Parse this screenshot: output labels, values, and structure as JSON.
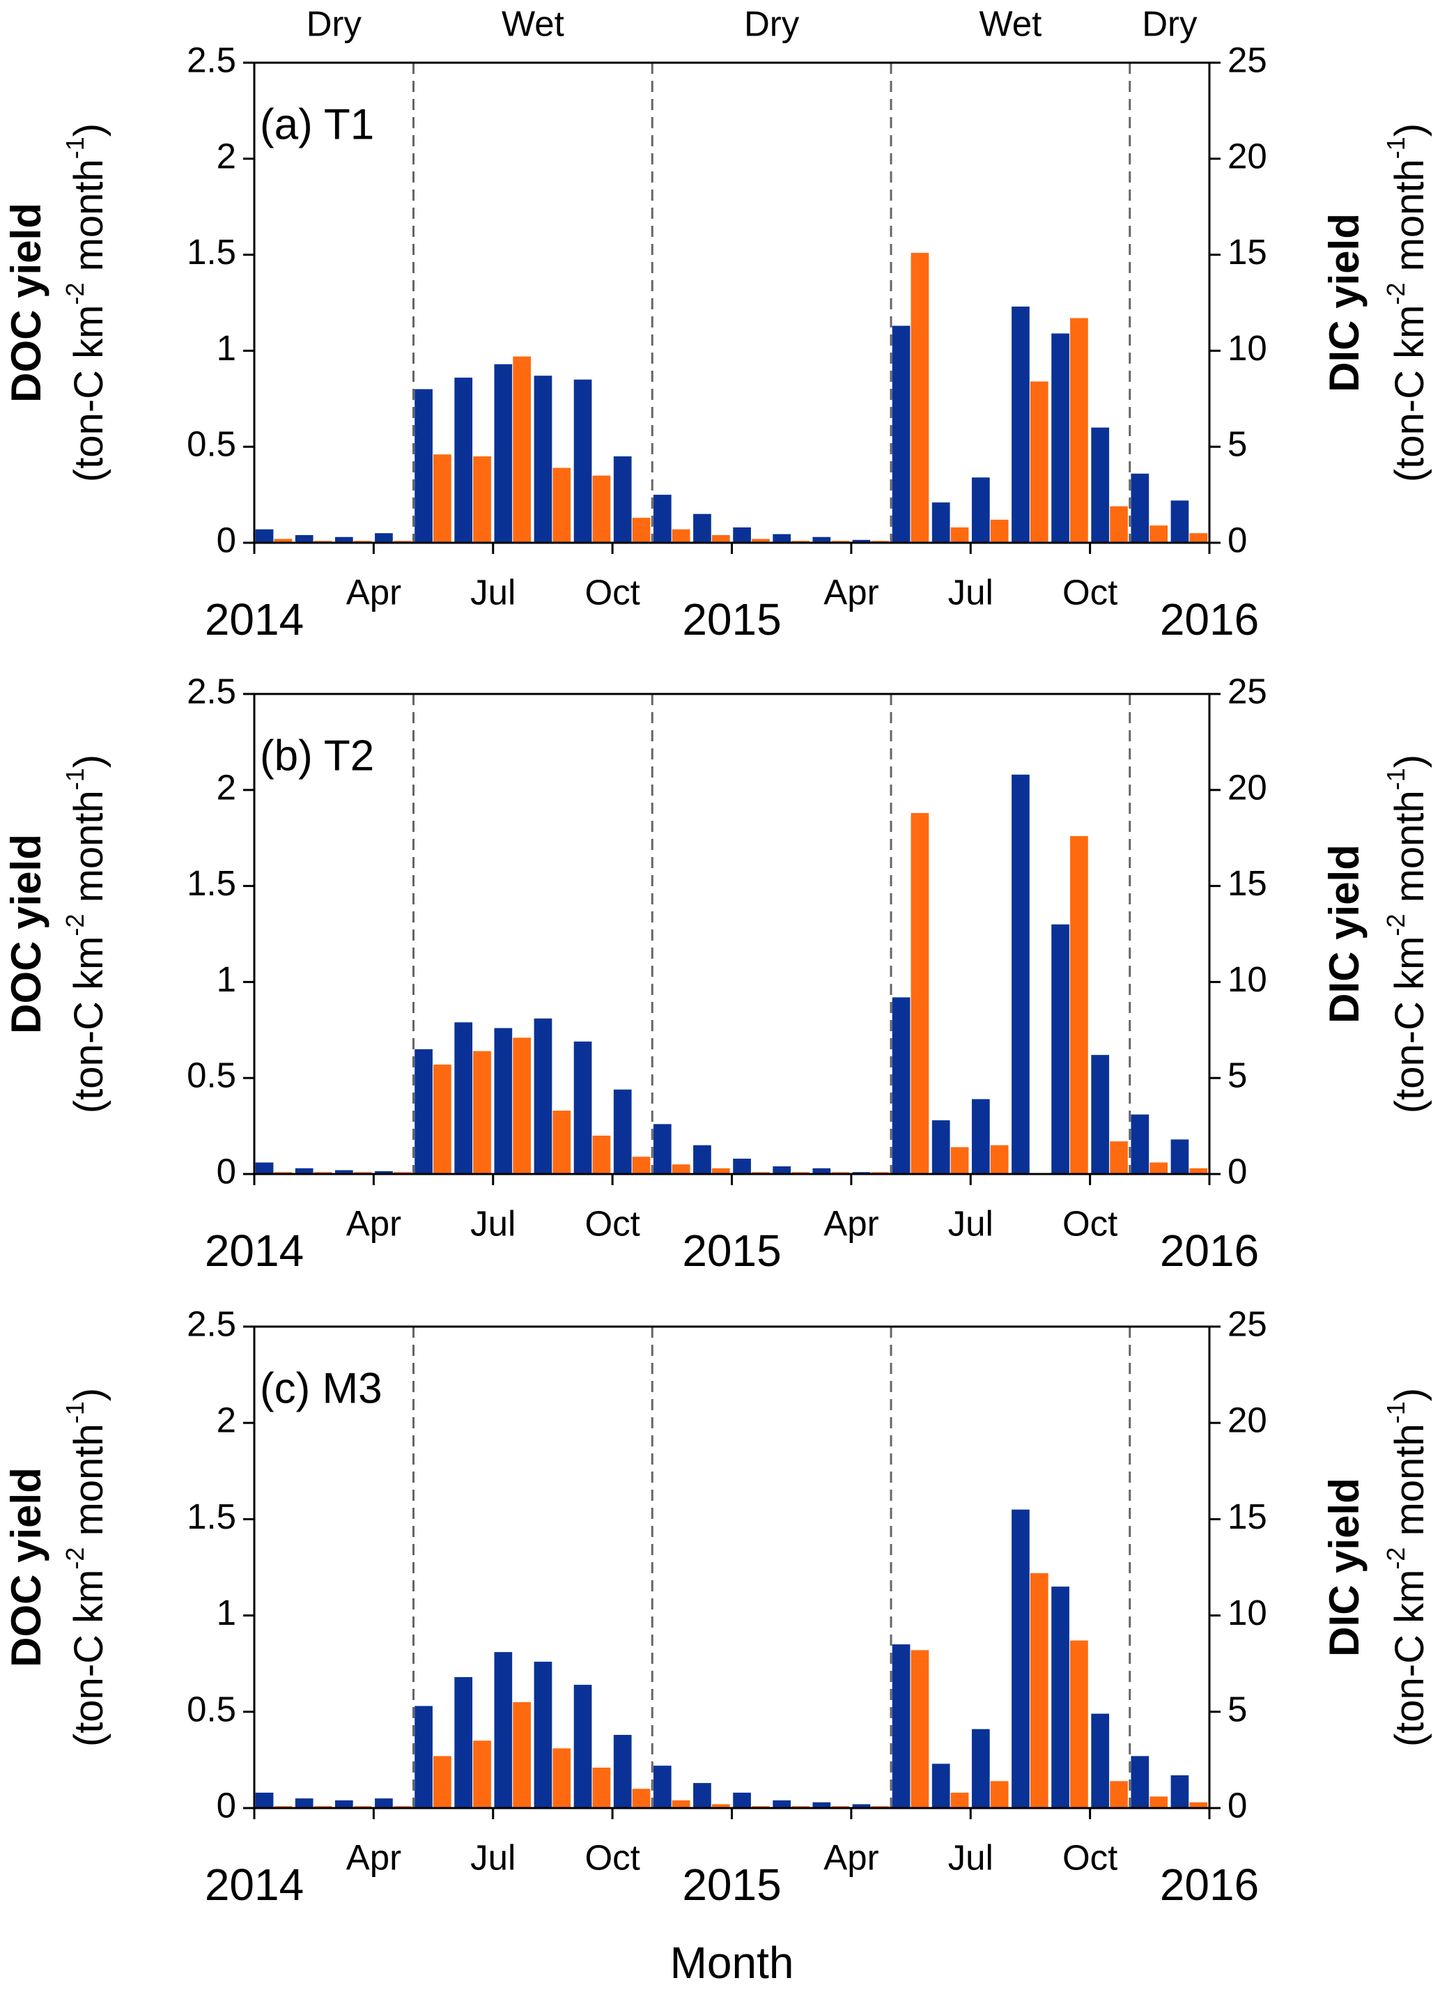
{
  "chart_data": [
    {
      "type": "bar",
      "title": "(a) T1",
      "season_boundaries": [
        4,
        10,
        16,
        22
      ],
      "season_labels": [
        "Dry",
        "Wet",
        "Dry",
        "Wet",
        "Dry"
      ],
      "ylabel": "DOC yield",
      "ylabel_units": [
        "(ton-C km",
        "-2",
        " month",
        "-1",
        ")"
      ],
      "y2label": "DIC yield",
      "y2label_units": [
        "(ton-C km",
        "-2",
        " month",
        "-1",
        ")"
      ],
      "xlim": [
        0,
        24
      ],
      "xticks": [
        {
          "value": 0,
          "label": "2014"
        },
        {
          "value": 3,
          "label": "Apr"
        },
        {
          "value": 6,
          "label": "Jul"
        },
        {
          "value": 9,
          "label": "Oct"
        },
        {
          "value": 12,
          "label": "2015"
        },
        {
          "value": 15,
          "label": "Apr"
        },
        {
          "value": 18,
          "label": "Jul"
        },
        {
          "value": 21,
          "label": "Oct"
        },
        {
          "value": 24,
          "label": "2016"
        }
      ],
      "ylim": [
        0,
        2.5
      ],
      "yticks": [
        0,
        0.5,
        1,
        1.5,
        2,
        2.5
      ],
      "y2lim": [
        0,
        25
      ],
      "y2ticks": [
        0,
        5,
        10,
        15,
        20,
        25
      ],
      "x": [
        0.5,
        1.5,
        2.5,
        3.5,
        4.5,
        5.5,
        6.5,
        7.5,
        8.5,
        9.5,
        10.5,
        11.5,
        12.5,
        13.5,
        14.5,
        15.5,
        16.5,
        17.5,
        18.5,
        19.5,
        20.5,
        21.5,
        22.5,
        23.5
      ],
      "series": [
        {
          "color": "#0a3296",
          "axis": "y2",
          "values": [
            0.7,
            0.4,
            0.3,
            0.5,
            8.0,
            8.6,
            9.3,
            8.7,
            8.5,
            4.5,
            2.5,
            1.5,
            0.8,
            0.45,
            0.3,
            0.15,
            11.3,
            2.1,
            3.4,
            12.3,
            10.9,
            6.0,
            3.6,
            2.2
          ]
        },
        {
          "color": "#ff6a10",
          "values": [
            0.02,
            0.01,
            0.01,
            0.01,
            0.46,
            0.45,
            0.97,
            0.39,
            0.35,
            0.13,
            0.07,
            0.04,
            0.02,
            0.01,
            0.01,
            0.01,
            1.51,
            0.08,
            0.12,
            0.84,
            1.17,
            0.19,
            0.09,
            0.05
          ]
        }
      ]
    },
    {
      "type": "bar",
      "title": "(b) T2",
      "season_boundaries": [
        4,
        10,
        16,
        22
      ],
      "ylabel": "DOC yield",
      "ylabel_units": [
        "(ton-C km",
        "-2",
        " month",
        "-1",
        ")"
      ],
      "y2label": "DIC yield",
      "y2label_units": [
        "(ton-C km",
        "-2",
        " month",
        "-1",
        ")"
      ],
      "xlim": [
        0,
        24
      ],
      "xticks": [
        {
          "value": 0,
          "label": "2014"
        },
        {
          "value": 3,
          "label": "Apr"
        },
        {
          "value": 6,
          "label": "Jul"
        },
        {
          "value": 9,
          "label": "Oct"
        },
        {
          "value": 12,
          "label": "2015"
        },
        {
          "value": 15,
          "label": "Apr"
        },
        {
          "value": 18,
          "label": "Jul"
        },
        {
          "value": 21,
          "label": "Oct"
        },
        {
          "value": 24,
          "label": "2016"
        }
      ],
      "ylim": [
        0,
        2.5
      ],
      "yticks": [
        0,
        0.5,
        1,
        1.5,
        2,
        2.5
      ],
      "y2lim": [
        0,
        25
      ],
      "y2ticks": [
        0,
        5,
        10,
        15,
        20,
        25
      ],
      "x": [
        0.5,
        1.5,
        2.5,
        3.5,
        4.5,
        5.5,
        6.5,
        7.5,
        8.5,
        9.5,
        10.5,
        11.5,
        12.5,
        13.5,
        14.5,
        15.5,
        16.5,
        17.5,
        18.5,
        19.5,
        20.5,
        21.5,
        22.5,
        23.5
      ],
      "series": [
        {
          "color": "#0a3296",
          "axis": "y2",
          "values": [
            0.6,
            0.3,
            0.2,
            0.15,
            6.5,
            7.9,
            7.6,
            8.1,
            6.9,
            4.4,
            2.6,
            1.5,
            0.8,
            0.4,
            0.3,
            0.1,
            9.2,
            2.8,
            3.9,
            20.8,
            13.0,
            6.2,
            3.1,
            1.8
          ]
        },
        {
          "color": "#ff6a10",
          "values": [
            0.01,
            0.01,
            0.01,
            0.01,
            0.57,
            0.64,
            0.71,
            0.33,
            0.2,
            0.09,
            0.05,
            0.03,
            0.01,
            0.01,
            0.01,
            0.01,
            1.88,
            0.14,
            0.15,
            0,
            1.76,
            0.17,
            0.06,
            0.03
          ]
        }
      ]
    },
    {
      "type": "bar",
      "title": "(c) M3",
      "season_boundaries": [
        4,
        10,
        16,
        22
      ],
      "ylabel": "DOC yield",
      "ylabel_units": [
        "(ton-C km",
        "-2",
        " month",
        "-1",
        ")"
      ],
      "y2label": "DIC yield",
      "y2label_units": [
        "(ton-C km",
        "-2",
        " month",
        "-1",
        ")"
      ],
      "xlabel": "Month",
      "xlim": [
        0,
        24
      ],
      "xticks": [
        {
          "value": 0,
          "label": "2014"
        },
        {
          "value": 3,
          "label": "Apr"
        },
        {
          "value": 6,
          "label": "Jul"
        },
        {
          "value": 9,
          "label": "Oct"
        },
        {
          "value": 12,
          "label": "2015"
        },
        {
          "value": 15,
          "label": "Apr"
        },
        {
          "value": 18,
          "label": "Jul"
        },
        {
          "value": 21,
          "label": "Oct"
        },
        {
          "value": 24,
          "label": "2016"
        }
      ],
      "ylim": [
        0,
        2.5
      ],
      "yticks": [
        0,
        0.5,
        1,
        1.5,
        2,
        2.5
      ],
      "y2lim": [
        0,
        25
      ],
      "y2ticks": [
        0,
        5,
        10,
        15,
        20,
        25
      ],
      "x": [
        0.5,
        1.5,
        2.5,
        3.5,
        4.5,
        5.5,
        6.5,
        7.5,
        8.5,
        9.5,
        10.5,
        11.5,
        12.5,
        13.5,
        14.5,
        15.5,
        16.5,
        17.5,
        18.5,
        19.5,
        20.5,
        21.5,
        22.5,
        23.5
      ],
      "series": [
        {
          "color": "#0a3296",
          "axis": "y2",
          "values": [
            0.8,
            0.5,
            0.4,
            0.5,
            5.3,
            6.8,
            8.1,
            7.6,
            6.4,
            3.8,
            2.2,
            1.3,
            0.8,
            0.4,
            0.3,
            0.2,
            8.5,
            2.3,
            4.1,
            15.5,
            11.5,
            4.9,
            2.7,
            1.7
          ]
        },
        {
          "color": "#ff6a10",
          "values": [
            0.01,
            0.01,
            0.01,
            0.01,
            0.27,
            0.35,
            0.55,
            0.31,
            0.21,
            0.1,
            0.04,
            0.02,
            0.01,
            0.01,
            0.01,
            0.01,
            0.82,
            0.08,
            0.14,
            1.22,
            0.87,
            0.14,
            0.06,
            0.03
          ]
        }
      ]
    }
  ]
}
